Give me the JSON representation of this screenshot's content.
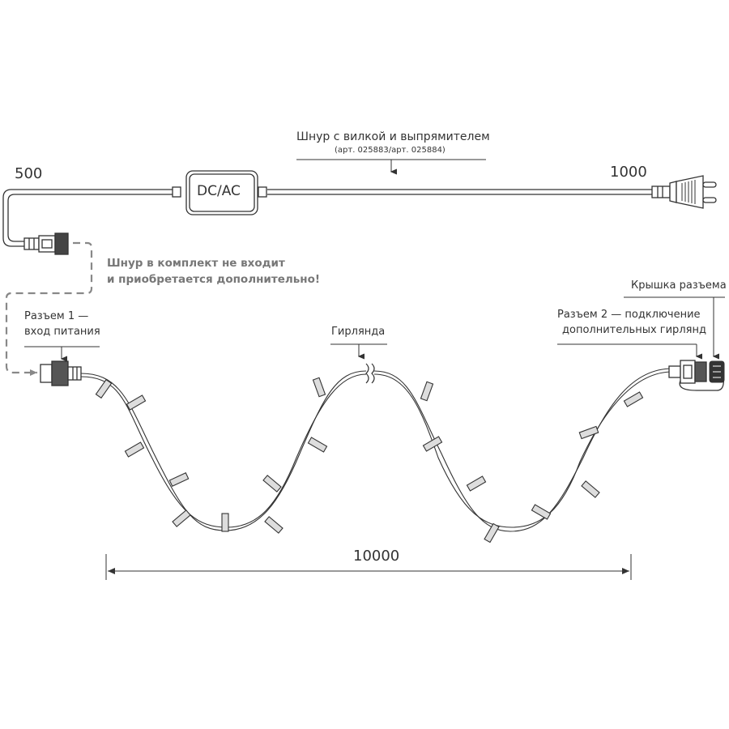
{
  "cord": {
    "title": "Шнур с вилкой и выпрямителем",
    "article": "(арт. 025883/арт. 025884)",
    "adapter_label": "DC/AC",
    "length_left": "500",
    "length_right": "1000",
    "note_line1": "Шнур в комплект не входит",
    "note_line2": "и приобретается дополнительно!"
  },
  "labels": {
    "connector1_line1": "Разъем 1 —",
    "connector1_line2": "вход питания",
    "garland": "Гирлянда",
    "cap": "Крышка разъема",
    "connector2_line1": "Разъем 2 — подключение",
    "connector2_line2": "дополнительных гирлянд"
  },
  "dimension": {
    "garland_length": "10000"
  },
  "colors": {
    "line": "#333333",
    "dashed": "#777777"
  }
}
